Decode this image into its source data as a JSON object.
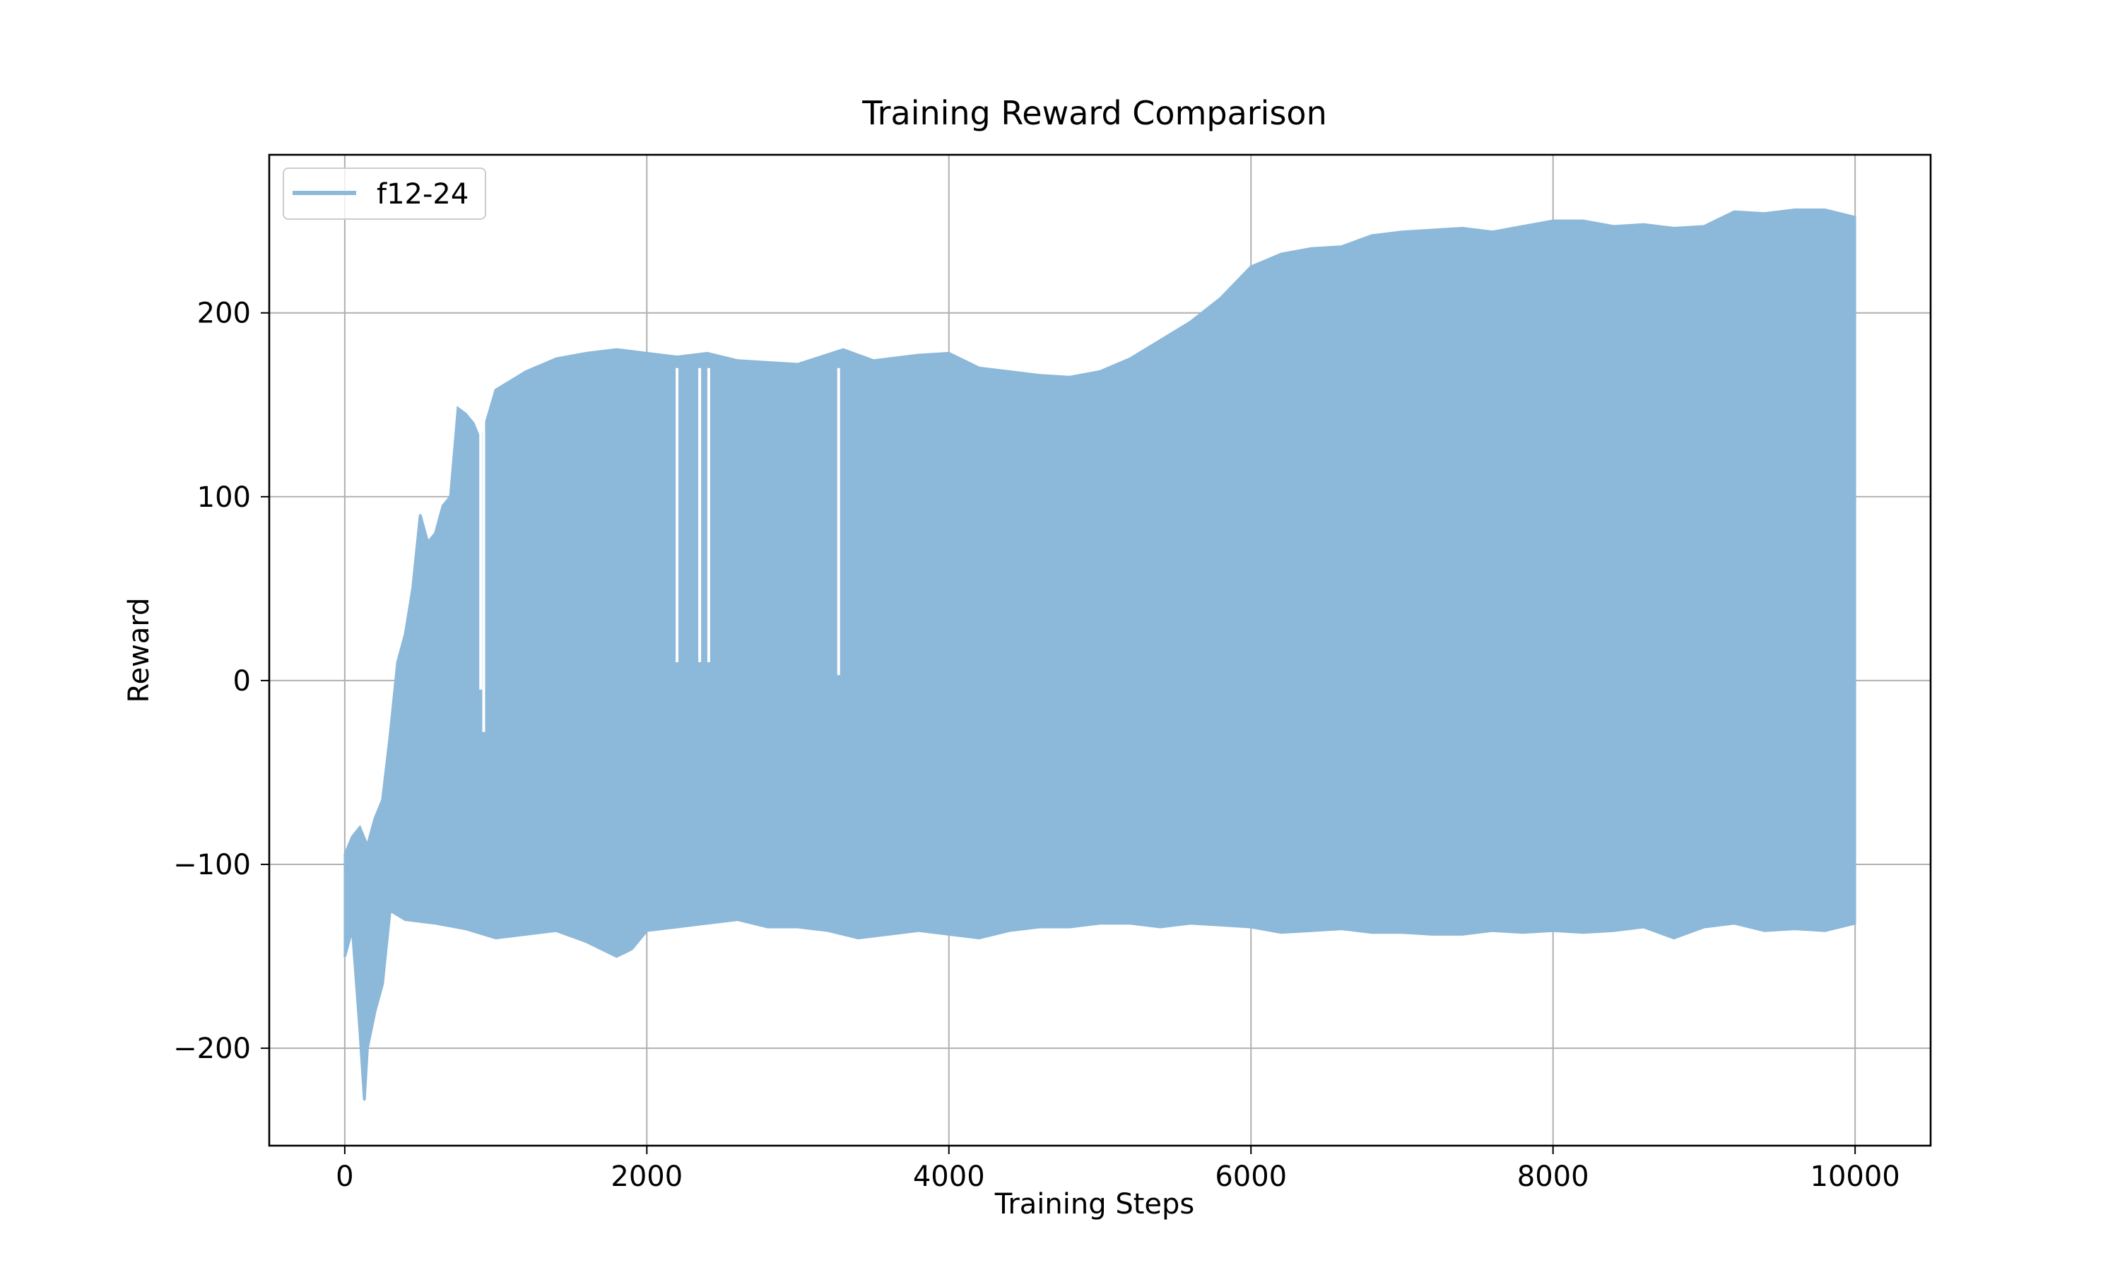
{
  "chart_data": {
    "type": "line",
    "title": "Training Reward Comparison",
    "xlabel": "Training Steps",
    "ylabel": "Reward",
    "xlim": [
      -500,
      10500
    ],
    "ylim": [
      -253,
      286
    ],
    "x_ticks": [
      0,
      2000,
      4000,
      6000,
      8000,
      10000
    ],
    "y_ticks": [
      -200,
      -100,
      0,
      100,
      200
    ],
    "x_tick_labels": [
      "0",
      "2000",
      "4000",
      "6000",
      "8000",
      "10000"
    ],
    "y_tick_labels": [
      "−200",
      "−100",
      "0",
      "100",
      "200"
    ],
    "grid": true,
    "legend_position": "top-left",
    "series": [
      {
        "name": "f12-24",
        "color": "#8cb8d9",
        "x_range": [
          0,
          10000
        ],
        "upper_envelope": [
          [
            0,
            -95
          ],
          [
            50,
            -85
          ],
          [
            100,
            -80
          ],
          [
            150,
            -90
          ],
          [
            200,
            -75
          ],
          [
            250,
            -65
          ],
          [
            300,
            -30
          ],
          [
            350,
            10
          ],
          [
            400,
            25
          ],
          [
            450,
            50
          ],
          [
            500,
            90
          ],
          [
            550,
            75
          ],
          [
            600,
            80
          ],
          [
            650,
            95
          ],
          [
            700,
            100
          ],
          [
            750,
            148
          ],
          [
            800,
            145
          ],
          [
            850,
            140
          ],
          [
            900,
            130
          ],
          [
            1000,
            158
          ],
          [
            1200,
            168
          ],
          [
            1400,
            175
          ],
          [
            1600,
            178
          ],
          [
            1800,
            180
          ],
          [
            2000,
            178
          ],
          [
            2200,
            176
          ],
          [
            2400,
            178
          ],
          [
            2600,
            174
          ],
          [
            2800,
            173
          ],
          [
            3000,
            172
          ],
          [
            3300,
            180
          ],
          [
            3500,
            174
          ],
          [
            3800,
            177
          ],
          [
            4000,
            178
          ],
          [
            4200,
            170
          ],
          [
            4400,
            168
          ],
          [
            4600,
            166
          ],
          [
            4800,
            165
          ],
          [
            5000,
            168
          ],
          [
            5200,
            175
          ],
          [
            5400,
            185
          ],
          [
            5600,
            195
          ],
          [
            5800,
            208
          ],
          [
            6000,
            225
          ],
          [
            6200,
            232
          ],
          [
            6400,
            235
          ],
          [
            6600,
            236
          ],
          [
            6800,
            242
          ],
          [
            7000,
            244
          ],
          [
            7200,
            245
          ],
          [
            7400,
            246
          ],
          [
            7600,
            244
          ],
          [
            7800,
            247
          ],
          [
            8000,
            250
          ],
          [
            8200,
            250
          ],
          [
            8400,
            247
          ],
          [
            8600,
            248
          ],
          [
            8800,
            246
          ],
          [
            9000,
            247
          ],
          [
            9200,
            255
          ],
          [
            9400,
            254
          ],
          [
            9600,
            256
          ],
          [
            9800,
            256
          ],
          [
            10000,
            252
          ]
        ],
        "lower_envelope": [
          [
            0,
            -150
          ],
          [
            50,
            -135
          ],
          [
            100,
            -190
          ],
          [
            130,
            -228
          ],
          [
            150,
            -200
          ],
          [
            200,
            -180
          ],
          [
            250,
            -165
          ],
          [
            300,
            -125
          ],
          [
            400,
            -130
          ],
          [
            600,
            -132
          ],
          [
            800,
            -135
          ],
          [
            1000,
            -140
          ],
          [
            1200,
            -138
          ],
          [
            1400,
            -136
          ],
          [
            1600,
            -142
          ],
          [
            1800,
            -150
          ],
          [
            1900,
            -146
          ],
          [
            2000,
            -136
          ],
          [
            2200,
            -134
          ],
          [
            2400,
            -132
          ],
          [
            2600,
            -130
          ],
          [
            2800,
            -134
          ],
          [
            3000,
            -134
          ],
          [
            3200,
            -136
          ],
          [
            3400,
            -140
          ],
          [
            3600,
            -138
          ],
          [
            3800,
            -136
          ],
          [
            4000,
            -138
          ],
          [
            4200,
            -140
          ],
          [
            4400,
            -136
          ],
          [
            4600,
            -134
          ],
          [
            4800,
            -134
          ],
          [
            5000,
            -132
          ],
          [
            5200,
            -132
          ],
          [
            5400,
            -134
          ],
          [
            5600,
            -132
          ],
          [
            5800,
            -133
          ],
          [
            6000,
            -134
          ],
          [
            6200,
            -137
          ],
          [
            6400,
            -136
          ],
          [
            6600,
            -135
          ],
          [
            6800,
            -137
          ],
          [
            7000,
            -137
          ],
          [
            7200,
            -138
          ],
          [
            7400,
            -138
          ],
          [
            7600,
            -136
          ],
          [
            7800,
            -137
          ],
          [
            8000,
            -136
          ],
          [
            8200,
            -137
          ],
          [
            8400,
            -136
          ],
          [
            8600,
            -134
          ],
          [
            8800,
            -140
          ],
          [
            9000,
            -134
          ],
          [
            9200,
            -132
          ],
          [
            9400,
            -136
          ],
          [
            9600,
            -135
          ],
          [
            9800,
            -136
          ],
          [
            10000,
            -132
          ]
        ],
        "dips": [
          [
            900,
            -5
          ],
          [
            920,
            -28
          ],
          [
            2200,
            10
          ],
          [
            2350,
            10
          ],
          [
            2410,
            10
          ],
          [
            3270,
            3
          ]
        ]
      }
    ]
  }
}
